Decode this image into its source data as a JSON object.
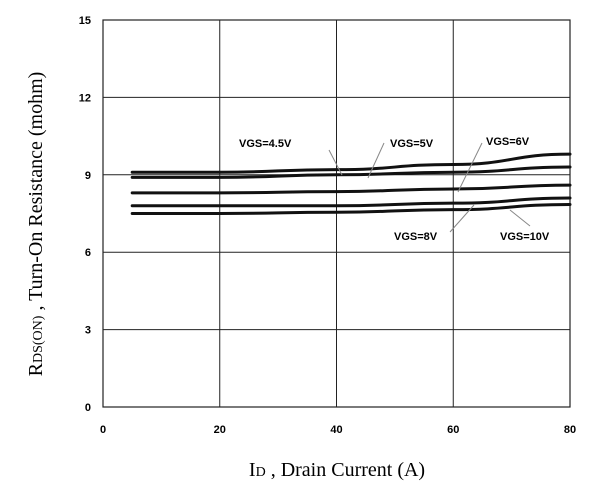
{
  "chart_data": {
    "type": "line",
    "xlabel": {
      "main": "I",
      "sub": "D",
      "rest": " , Drain Current (A)"
    },
    "ylabel": {
      "main": "R",
      "sub": "DS(ON)",
      "rest": " , Turn-On Resistance (mohm)"
    },
    "xlim": [
      0,
      80
    ],
    "ylim": [
      0,
      15
    ],
    "xticks": [
      "0",
      "20",
      "40",
      "60",
      "80"
    ],
    "yticks": [
      "0",
      "3",
      "6",
      "9",
      "12",
      "15"
    ],
    "grid": true,
    "series": [
      {
        "name": "VGS=4.5V",
        "x": [
          5,
          20,
          40,
          60,
          80
        ],
        "y": [
          9.1,
          9.1,
          9.2,
          9.4,
          9.8
        ]
      },
      {
        "name": "VGS=5V",
        "x": [
          5,
          20,
          40,
          60,
          80
        ],
        "y": [
          8.9,
          8.9,
          9.0,
          9.1,
          9.3
        ]
      },
      {
        "name": "VGS=6V",
        "x": [
          5,
          20,
          40,
          60,
          80
        ],
        "y": [
          8.3,
          8.3,
          8.35,
          8.45,
          8.6
        ]
      },
      {
        "name": "VGS=8V",
        "x": [
          5,
          20,
          40,
          60,
          80
        ],
        "y": [
          7.8,
          7.8,
          7.8,
          7.9,
          8.1
        ]
      },
      {
        "name": "VGS=10V",
        "x": [
          5,
          20,
          40,
          60,
          80
        ],
        "y": [
          7.5,
          7.5,
          7.55,
          7.65,
          7.85
        ]
      }
    ]
  }
}
